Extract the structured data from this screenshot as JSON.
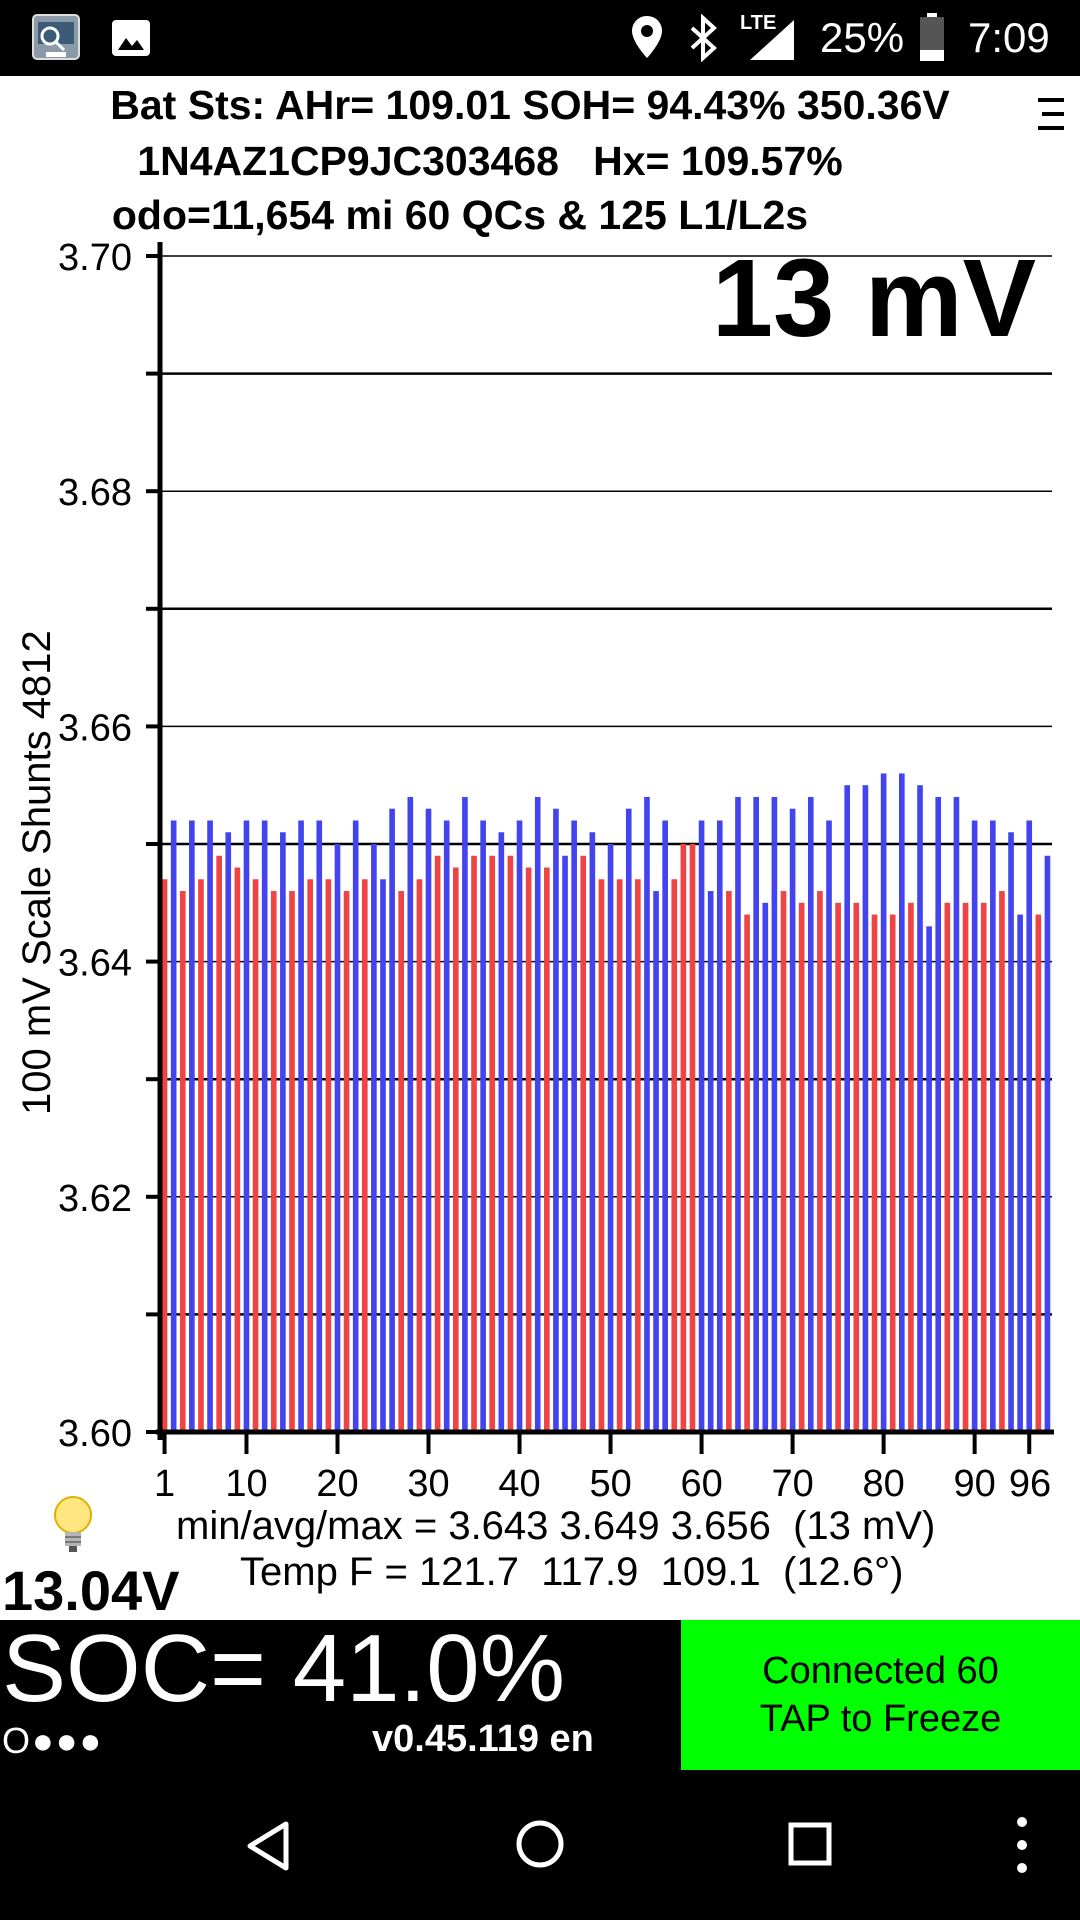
{
  "status_bar": {
    "icons": [
      "app-icon",
      "gallery-icon",
      "location-icon",
      "bluetooth-icon",
      "lte-signal-icon",
      "battery-icon"
    ],
    "network": "LTE",
    "battery": "25%",
    "time": "7:09"
  },
  "header": {
    "line1": "Bat Sts: AHr= 109.01 SOH= 94.43% 350.36V",
    "line2": "1N4AZ1CP9JC303468   Hx= 109.57%",
    "line3": "odo=11,654 mi 60 QCs & 125 L1/L2s",
    "menu_icon": "menu-icon"
  },
  "chart_data": {
    "type": "bar",
    "ylabel": "100 mV Scale   Shunts 4812",
    "ylim": [
      3.6,
      3.7
    ],
    "y_ticks": [
      "3.70",
      "3.68",
      "3.66",
      "3.64",
      "3.62",
      "3.60"
    ],
    "x_ticks": [
      "1",
      "10",
      "20",
      "30",
      "40",
      "50",
      "60",
      "70",
      "80",
      "90",
      "96"
    ],
    "delta_label": "13 mV",
    "colors": {
      "shunted": "#ee4444",
      "normal": "#4444ee"
    },
    "cells": [
      {
        "v": 3.647,
        "s": 1
      },
      {
        "v": 3.652,
        "s": 0
      },
      {
        "v": 3.646,
        "s": 1
      },
      {
        "v": 3.652,
        "s": 0
      },
      {
        "v": 3.647,
        "s": 1
      },
      {
        "v": 3.652,
        "s": 0
      },
      {
        "v": 3.649,
        "s": 1
      },
      {
        "v": 3.651,
        "s": 0
      },
      {
        "v": 3.648,
        "s": 1
      },
      {
        "v": 3.652,
        "s": 0
      },
      {
        "v": 3.647,
        "s": 1
      },
      {
        "v": 3.652,
        "s": 0
      },
      {
        "v": 3.646,
        "s": 1
      },
      {
        "v": 3.651,
        "s": 0
      },
      {
        "v": 3.646,
        "s": 1
      },
      {
        "v": 3.652,
        "s": 0
      },
      {
        "v": 3.647,
        "s": 1
      },
      {
        "v": 3.652,
        "s": 0
      },
      {
        "v": 3.647,
        "s": 1
      },
      {
        "v": 3.65,
        "s": 0
      },
      {
        "v": 3.646,
        "s": 1
      },
      {
        "v": 3.652,
        "s": 0
      },
      {
        "v": 3.647,
        "s": 1
      },
      {
        "v": 3.65,
        "s": 0
      },
      {
        "v": 3.647,
        "s": 0
      },
      {
        "v": 3.653,
        "s": 0
      },
      {
        "v": 3.646,
        "s": 1
      },
      {
        "v": 3.654,
        "s": 0
      },
      {
        "v": 3.647,
        "s": 1
      },
      {
        "v": 3.653,
        "s": 0
      },
      {
        "v": 3.649,
        "s": 1
      },
      {
        "v": 3.652,
        "s": 0
      },
      {
        "v": 3.648,
        "s": 1
      },
      {
        "v": 3.654,
        "s": 0
      },
      {
        "v": 3.649,
        "s": 1
      },
      {
        "v": 3.652,
        "s": 0
      },
      {
        "v": 3.649,
        "s": 1
      },
      {
        "v": 3.651,
        "s": 0
      },
      {
        "v": 3.649,
        "s": 1
      },
      {
        "v": 3.652,
        "s": 0
      },
      {
        "v": 3.648,
        "s": 1
      },
      {
        "v": 3.654,
        "s": 0
      },
      {
        "v": 3.648,
        "s": 1
      },
      {
        "v": 3.653,
        "s": 0
      },
      {
        "v": 3.649,
        "s": 0
      },
      {
        "v": 3.652,
        "s": 0
      },
      {
        "v": 3.649,
        "s": 1
      },
      {
        "v": 3.651,
        "s": 0
      },
      {
        "v": 3.647,
        "s": 1
      },
      {
        "v": 3.65,
        "s": 0
      },
      {
        "v": 3.647,
        "s": 1
      },
      {
        "v": 3.653,
        "s": 0
      },
      {
        "v": 3.647,
        "s": 1
      },
      {
        "v": 3.654,
        "s": 0
      },
      {
        "v": 3.646,
        "s": 0
      },
      {
        "v": 3.652,
        "s": 0
      },
      {
        "v": 3.647,
        "s": 1
      },
      {
        "v": 3.65,
        "s": 1
      },
      {
        "v": 3.65,
        "s": 1
      },
      {
        "v": 3.652,
        "s": 0
      },
      {
        "v": 3.646,
        "s": 0
      },
      {
        "v": 3.652,
        "s": 0
      },
      {
        "v": 3.646,
        "s": 1
      },
      {
        "v": 3.654,
        "s": 0
      },
      {
        "v": 3.644,
        "s": 1
      },
      {
        "v": 3.654,
        "s": 0
      },
      {
        "v": 3.645,
        "s": 0
      },
      {
        "v": 3.654,
        "s": 0
      },
      {
        "v": 3.646,
        "s": 1
      },
      {
        "v": 3.653,
        "s": 0
      },
      {
        "v": 3.645,
        "s": 1
      },
      {
        "v": 3.654,
        "s": 0
      },
      {
        "v": 3.646,
        "s": 1
      },
      {
        "v": 3.652,
        "s": 0
      },
      {
        "v": 3.645,
        "s": 1
      },
      {
        "v": 3.655,
        "s": 0
      },
      {
        "v": 3.645,
        "s": 1
      },
      {
        "v": 3.655,
        "s": 0
      },
      {
        "v": 3.644,
        "s": 1
      },
      {
        "v": 3.656,
        "s": 0
      },
      {
        "v": 3.644,
        "s": 1
      },
      {
        "v": 3.656,
        "s": 0
      },
      {
        "v": 3.645,
        "s": 1
      },
      {
        "v": 3.655,
        "s": 0
      },
      {
        "v": 3.643,
        "s": 0
      },
      {
        "v": 3.654,
        "s": 0
      },
      {
        "v": 3.645,
        "s": 1
      },
      {
        "v": 3.654,
        "s": 0
      },
      {
        "v": 3.645,
        "s": 1
      },
      {
        "v": 3.652,
        "s": 0
      },
      {
        "v": 3.645,
        "s": 1
      },
      {
        "v": 3.652,
        "s": 0
      },
      {
        "v": 3.646,
        "s": 1
      },
      {
        "v": 3.651,
        "s": 0
      },
      {
        "v": 3.644,
        "s": 0
      },
      {
        "v": 3.652,
        "s": 0
      },
      {
        "v": 3.644,
        "s": 1
      },
      {
        "v": 3.649,
        "s": 0
      }
    ]
  },
  "stats": {
    "bulb_icon": "lightbulb-icon",
    "aux_voltage": "13.04V",
    "minavgmax": "min/avg/max = 3.643 3.649 3.656  (13 mV)",
    "temp": "Temp F = 121.7  117.9  109.1  (12.6°)"
  },
  "bottom": {
    "soc": "SOC= 41.0%",
    "dots": "O●●●",
    "version": "v0.45.119 en",
    "connect_line1": "Connected 60",
    "connect_line2": "TAP to Freeze",
    "connect_color": "#00ff00"
  },
  "nav": {
    "icons": [
      "back-icon",
      "home-icon",
      "recents-icon",
      "more-options-icon"
    ]
  }
}
